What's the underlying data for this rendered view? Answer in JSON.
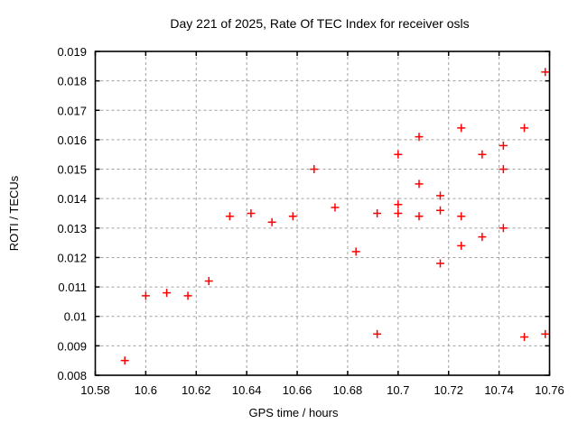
{
  "figure": {
    "background": "#ffffff"
  },
  "chart_data": {
    "type": "scatter",
    "title": "Day 221 of 2025, Rate Of TEC Index for receiver osls",
    "xlabel": "GPS time / hours",
    "ylabel": "ROTI / TECUs",
    "xlim": [
      10.58,
      10.76
    ],
    "ylim": [
      0.008,
      0.019
    ],
    "xticks": [
      10.58,
      10.6,
      10.62,
      10.64,
      10.66,
      10.68,
      10.7,
      10.72,
      10.74,
      10.76
    ],
    "xtick_labels": [
      "10.58",
      "10.6",
      "10.62",
      "10.64",
      "10.66",
      "10.68",
      "10.7",
      "10.72",
      "10.74",
      "10.76"
    ],
    "yticks": [
      0.008,
      0.009,
      0.01,
      0.011,
      0.012,
      0.013,
      0.014,
      0.015,
      0.016,
      0.017,
      0.018,
      0.019
    ],
    "ytick_labels": [
      "0.008",
      "0.009",
      "0.01",
      "0.011",
      "0.012",
      "0.013",
      "0.014",
      "0.015",
      "0.016",
      "0.017",
      "0.018",
      "0.019"
    ],
    "grid": true,
    "grid_style": "dashed",
    "legend": "none",
    "marker_shape": "plus",
    "marker_size": 9,
    "colors": {
      "marker": "#ff0000",
      "grid": "#a0a0a0",
      "border": "#000000",
      "text": "#000000",
      "background": "#ffffff"
    },
    "series": [
      {
        "name": "ROTI",
        "points": [
          [
            10.5917,
            0.0085
          ],
          [
            10.6,
            0.0107
          ],
          [
            10.6083,
            0.0108
          ],
          [
            10.6167,
            0.0107
          ],
          [
            10.625,
            0.0112
          ],
          [
            10.6333,
            0.0134
          ],
          [
            10.6417,
            0.0135
          ],
          [
            10.65,
            0.0132
          ],
          [
            10.6583,
            0.0134
          ],
          [
            10.6667,
            0.015
          ],
          [
            10.675,
            0.0137
          ],
          [
            10.6833,
            0.0122
          ],
          [
            10.6917,
            0.0135
          ],
          [
            10.6917,
            0.0094
          ],
          [
            10.7,
            0.0155
          ],
          [
            10.7,
            0.0138
          ],
          [
            10.7,
            0.0135
          ],
          [
            10.7083,
            0.0161
          ],
          [
            10.7083,
            0.0145
          ],
          [
            10.7083,
            0.0134
          ],
          [
            10.7167,
            0.0141
          ],
          [
            10.7167,
            0.0136
          ],
          [
            10.7167,
            0.0118
          ],
          [
            10.725,
            0.0164
          ],
          [
            10.725,
            0.0134
          ],
          [
            10.725,
            0.0124
          ],
          [
            10.7333,
            0.0155
          ],
          [
            10.7333,
            0.0127
          ],
          [
            10.7417,
            0.0158
          ],
          [
            10.7417,
            0.015
          ],
          [
            10.7417,
            0.013
          ],
          [
            10.75,
            0.0164
          ],
          [
            10.75,
            0.0093
          ],
          [
            10.7583,
            0.0183
          ],
          [
            10.7583,
            0.0094
          ]
        ]
      }
    ]
  }
}
